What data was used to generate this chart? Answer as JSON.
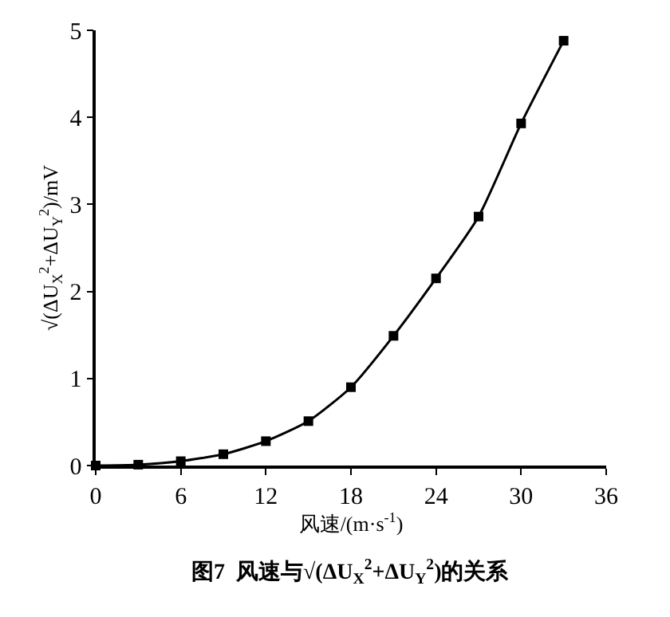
{
  "chart_data": {
    "type": "line",
    "title": "图7  风速与√(ΔU$_{X}$$^{2}$+ΔU$_{Y}$$^{2}$)的关系",
    "xlabel": "风速/(m·s$^{-1}$)",
    "ylabel": "√(ΔU$_{X}$$^{2}$+ΔU$_{Y}$$^{2}$)/mV",
    "x": [
      0,
      3,
      6,
      9,
      12,
      15,
      18,
      21,
      24,
      27,
      30,
      33
    ],
    "series": [
      {
        "color": "#000000",
        "values": [
          0,
          0.01,
          0.05,
          0.13,
          0.28,
          0.51,
          0.9,
          1.49,
          2.15,
          2.86,
          3.93,
          4.88
        ]
      }
    ],
    "xlim": [
      0,
      36
    ],
    "xticks": [
      0,
      6,
      12,
      18,
      24,
      30,
      36
    ],
    "ylim": [
      0,
      5
    ],
    "yticks": [
      0,
      1,
      2,
      3,
      4,
      5
    ],
    "marker": "square",
    "line_style": "solid"
  }
}
